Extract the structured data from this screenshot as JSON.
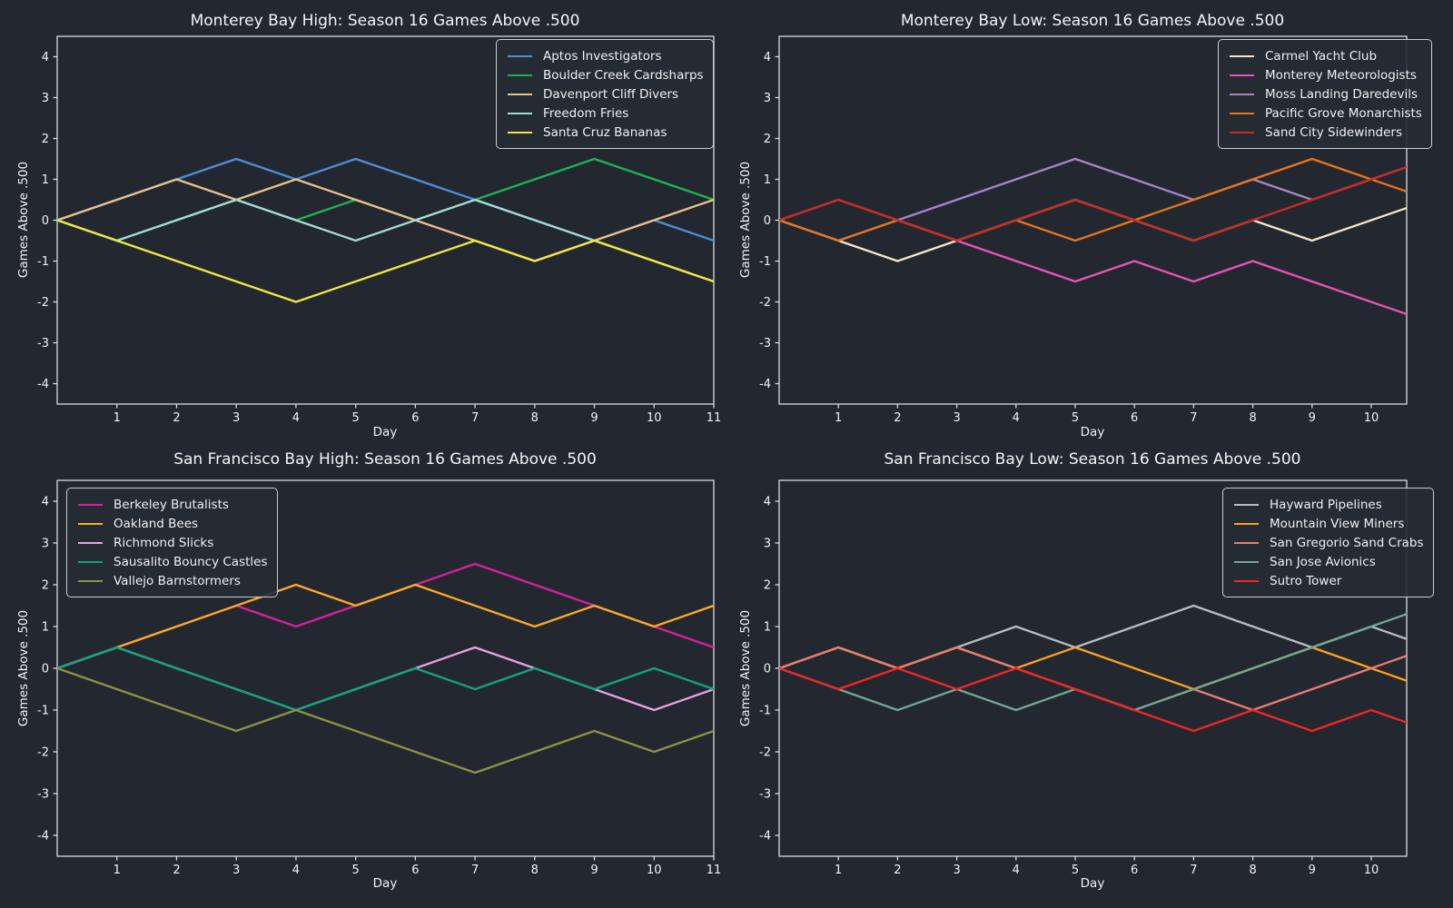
{
  "figure": {
    "background": "#232830",
    "text_color": "#f0f2f4",
    "spine_color": "#d8dce0",
    "grid": "off"
  },
  "chart_data": [
    {
      "type": "line",
      "id": "monterey-bay-high",
      "title": "Monterey Bay High: Season 16 Games Above .500",
      "xlabel": "Day",
      "ylabel": "Games Above .500",
      "x": [
        0,
        1,
        2,
        3,
        4,
        5,
        6,
        7,
        8,
        9,
        10,
        11
      ],
      "xticks": [
        1,
        2,
        3,
        4,
        5,
        6,
        7,
        8,
        9,
        10,
        11
      ],
      "yticks": [
        -4,
        -3,
        -2,
        -1,
        0,
        1,
        2,
        3,
        4
      ],
      "ylim": [
        -4.5,
        4.5
      ],
      "legend_position": "top-right",
      "series": [
        {
          "name": "Aptos Investigators",
          "color": "#4d8ed6",
          "values": [
            0,
            0.5,
            1,
            1.5,
            1,
            1.5,
            1,
            0.5,
            0,
            -0.5,
            0,
            -0.5
          ]
        },
        {
          "name": "Boulder Creek Cardsharps",
          "color": "#1db551",
          "values": [
            0,
            -0.5,
            0,
            0.5,
            0,
            0.5,
            0,
            0.5,
            1,
            1.5,
            1,
            0.5
          ]
        },
        {
          "name": "Davenport Cliff Divers",
          "color": "#e9c189",
          "values": [
            0,
            0.5,
            1,
            0.5,
            1,
            0.5,
            0,
            -0.5,
            -1,
            -0.5,
            0,
            0.5
          ]
        },
        {
          "name": "Freedom Fries",
          "color": "#a7d9d5",
          "values": [
            0,
            -0.5,
            0,
            0.5,
            0,
            -0.5,
            0,
            0.5,
            0,
            -0.5,
            -1,
            -1.5
          ]
        },
        {
          "name": "Santa Cruz Bananas",
          "color": "#f3e644",
          "values": [
            0,
            -0.5,
            -1,
            -1.5,
            -2,
            -1.5,
            -1,
            -0.5,
            -1,
            -0.5,
            -1,
            -1.5
          ]
        }
      ]
    },
    {
      "type": "line",
      "id": "monterey-bay-low",
      "title": "Monterey Bay Low: Season 16 Games Above .500",
      "xlabel": "Day",
      "ylabel": "Games Above .500",
      "x": [
        0,
        1,
        2,
        3,
        4,
        5,
        6,
        7,
        8,
        9,
        10,
        11
      ],
      "xticks": [
        1,
        2,
        3,
        4,
        5,
        6,
        7,
        8,
        9,
        10
      ],
      "yticks": [
        -4,
        -3,
        -2,
        -1,
        0,
        1,
        2,
        3,
        4
      ],
      "ylim": [
        -4.5,
        4.5
      ],
      "legend_position": "top-right",
      "series": [
        {
          "name": "Carmel Yacht Club",
          "color": "#f3e5c9",
          "values": [
            0,
            -0.5,
            -1,
            -0.5,
            0,
            0.5,
            0,
            -0.5,
            0,
            -0.5,
            0,
            0.5
          ]
        },
        {
          "name": "Monterey Meteorologists",
          "color": "#ec53b4",
          "values": [
            0,
            0.5,
            0,
            -0.5,
            -1,
            -1.5,
            -1,
            -1.5,
            -1,
            -1.5,
            -2,
            -2.5
          ]
        },
        {
          "name": "Moss Landing Daredevils",
          "color": "#a785c9",
          "values": [
            0,
            -0.5,
            0,
            0.5,
            1,
            1.5,
            1,
            0.5,
            1,
            0.5,
            1,
            1.5
          ]
        },
        {
          "name": "Pacific Grove Monarchists",
          "color": "#e8751c",
          "values": [
            0,
            -0.5,
            0,
            -0.5,
            0,
            -0.5,
            0,
            0.5,
            1,
            1.5,
            1,
            0.5
          ]
        },
        {
          "name": "Sand City Sidewinders",
          "color": "#c92a22",
          "values": [
            0,
            0.5,
            0,
            -0.5,
            0,
            0.5,
            0,
            -0.5,
            0,
            0.5,
            1,
            1.5
          ]
        }
      ]
    },
    {
      "type": "line",
      "id": "san-francisco-bay-high",
      "title": "San Francisco Bay High: Season 16 Games Above .500",
      "xlabel": "Day",
      "ylabel": "Games Above .500",
      "x": [
        0,
        1,
        2,
        3,
        4,
        5,
        6,
        7,
        8,
        9,
        10,
        11
      ],
      "xticks": [
        1,
        2,
        3,
        4,
        5,
        6,
        7,
        8,
        9,
        10,
        11
      ],
      "yticks": [
        -4,
        -3,
        -2,
        -1,
        0,
        1,
        2,
        3,
        4
      ],
      "ylim": [
        -4.5,
        4.5
      ],
      "legend_position": "top-left",
      "series": [
        {
          "name": "Berkeley Brutalists",
          "color": "#d91f9e",
          "values": [
            0,
            0.5,
            1,
            1.5,
            1,
            1.5,
            2,
            2.5,
            2,
            1.5,
            1,
            0.5
          ]
        },
        {
          "name": "Oakland Bees",
          "color": "#fdaa26",
          "values": [
            0,
            0.5,
            1,
            1.5,
            2,
            1.5,
            2,
            1.5,
            1,
            1.5,
            1,
            1.5
          ]
        },
        {
          "name": "Richmond Slicks",
          "color": "#eb9fe4",
          "values": [
            0,
            0.5,
            0,
            -0.5,
            -1,
            -0.5,
            0,
            0.5,
            0,
            -0.5,
            -1,
            -0.5
          ]
        },
        {
          "name": "Sausalito Bouncy Castles",
          "color": "#0fa57c",
          "values": [
            0,
            0.5,
            0,
            -0.5,
            -1,
            -0.5,
            0,
            -0.5,
            0,
            -0.5,
            0,
            -0.5
          ]
        },
        {
          "name": "Vallejo Barnstormers",
          "color": "#8b9540",
          "values": [
            0,
            -0.5,
            -1,
            -1.5,
            -1,
            -1.5,
            -2,
            -2.5,
            -2,
            -1.5,
            -2,
            -1.5
          ]
        }
      ]
    },
    {
      "type": "line",
      "id": "san-francisco-bay-low",
      "title": "San Francisco Bay Low: Season 16 Games Above .500",
      "xlabel": "Day",
      "ylabel": "Games Above .500",
      "x": [
        0,
        1,
        2,
        3,
        4,
        5,
        6,
        7,
        8,
        9,
        10,
        11
      ],
      "xticks": [
        1,
        2,
        3,
        4,
        5,
        6,
        7,
        8,
        9,
        10
      ],
      "yticks": [
        -4,
        -3,
        -2,
        -1,
        0,
        1,
        2,
        3,
        4
      ],
      "ylim": [
        -4.5,
        4.5
      ],
      "legend_position": "top-right",
      "series": [
        {
          "name": "Hayward Pipelines",
          "color": "#b9bcbf",
          "values": [
            0,
            0.5,
            0,
            0.5,
            1,
            0.5,
            1,
            1.5,
            1,
            0.5,
            1,
            0.5
          ]
        },
        {
          "name": "Mountain View Miners",
          "color": "#fca21c",
          "values": [
            0,
            0.5,
            0,
            0.5,
            0,
            0.5,
            0,
            -0.5,
            0,
            0.5,
            0,
            -0.5
          ]
        },
        {
          "name": "San Gregorio Sand Crabs",
          "color": "#ea7d70",
          "values": [
            0,
            0.5,
            0,
            0.5,
            0,
            -0.5,
            -1,
            -0.5,
            -1,
            -0.5,
            0,
            0.5
          ]
        },
        {
          "name": "San Jose Avionics",
          "color": "#72a893",
          "values": [
            0,
            -0.5,
            -1,
            -0.5,
            -1,
            -0.5,
            -1,
            -0.5,
            0,
            0.5,
            1,
            1.5
          ]
        },
        {
          "name": "Sutro Tower",
          "color": "#f42525",
          "values": [
            0,
            -0.5,
            0,
            -0.5,
            0,
            -0.5,
            -1,
            -1.5,
            -1,
            -1.5,
            -1,
            -1.5
          ]
        }
      ]
    }
  ]
}
